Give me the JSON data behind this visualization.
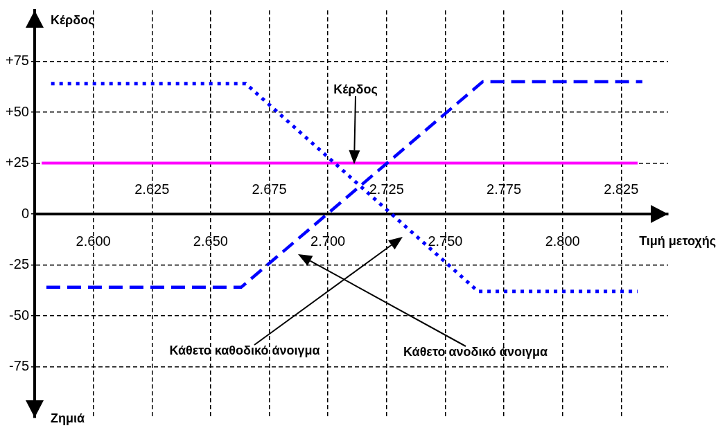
{
  "chart_data": {
    "type": "line",
    "ylabel": "Κέρδος",
    "xlabel": "Τιμή μετοχής",
    "annotations": [
      "Κέρδος",
      "Κάθετο καθοδικό άνοιγμα",
      "Κάθετο ανοδικό άνοιγμα",
      "Ζημιά"
    ],
    "series": [
      {
        "color": "#0000ff",
        "line_style": "dotted",
        "x": [
          2.582,
          2.665,
          2.764,
          2.832
        ],
        "values": [
          64,
          64,
          -38,
          -38
        ]
      },
      {
        "color": "#0000ff",
        "line_style": "dashed",
        "x": [
          2.58,
          2.663,
          2.766,
          2.834
        ],
        "values": [
          -36,
          -36,
          65,
          65
        ]
      },
      {
        "color": "#ff00ff",
        "line_style": "solid",
        "x": [
          2.578,
          2.832
        ],
        "values": [
          25,
          25
        ]
      }
    ],
    "xlim": [
      2.575,
      2.845
    ],
    "ylim": [
      -100,
      100
    ],
    "xticks": [
      {
        "value": 2.6,
        "label": "2.600"
      },
      {
        "value": 2.65,
        "label": "2.650"
      },
      {
        "value": 2.7,
        "label": "2.700"
      },
      {
        "value": 2.75,
        "label": "2.750"
      },
      {
        "value": 2.8,
        "label": "2.800"
      }
    ],
    "x2lim": [
      2.575,
      2.845
    ],
    "x2ticks": [
      2.625,
      2.675,
      2.725,
      2.775,
      2.825
    ],
    "yticks": [
      -75,
      -50,
      -25,
      0,
      {
        "value": 25,
        "label": "+25"
      },
      {
        "value": 50,
        "label": "+50"
      },
      {
        "value": 75,
        "label": "+75"
      }
    ],
    "grid": true
  }
}
